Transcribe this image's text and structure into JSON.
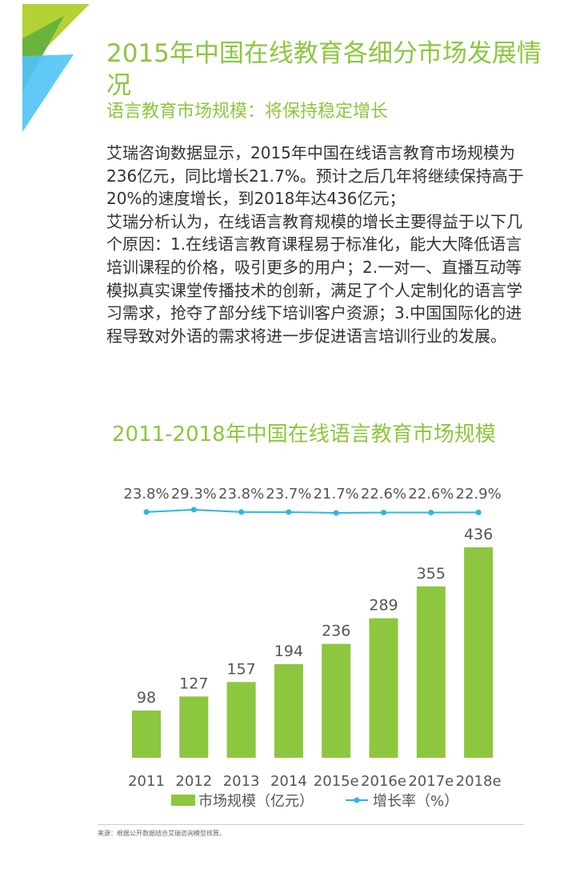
{
  "header": {
    "title": "2015年中国在线教育各细分市场发展情况",
    "subtitle": "语言教育市场规模：将保持稳定增长"
  },
  "body": {
    "paragraph1": "艾瑞咨询数据显示，2015年中国在线语言教育市场规模为236亿元，同比增长21.7%。预计之后几年将继续保持高于20%的速度增长，到2018年达436亿元；",
    "paragraph2": "艾瑞分析认为，在线语言教育规模的增长主要得益于以下几个原因：1.在线语言教育课程易于标准化，能大大降低语言培训课程的价格，吸引更多的用户；2.一对一、直播互动等模拟真实课堂传播技术的创新，满足了个人定制化的语言学习需求，抢夺了部分线下培训客户资源；3.中国国际化的进程导致对外语的需求将进一步促进语言培训行业的发展。"
  },
  "colors": {
    "accent": "#8dc63f",
    "bar": "#8dc63f",
    "line": "#29b6e8",
    "logo_dark": "#6ab43e",
    "logo_light": "#b2d235",
    "logo_blue": "#4fc3f7"
  },
  "chart_data": {
    "type": "bar",
    "title": "2011-2018年中国在线语言教育市场规模",
    "categories": [
      "2011",
      "2012",
      "2013",
      "2014",
      "2015e",
      "2016e",
      "2017e",
      "2018e"
    ],
    "series": [
      {
        "name": "市场规模（亿元）",
        "type": "bar",
        "values": [
          98,
          127,
          157,
          194,
          236,
          289,
          355,
          436
        ]
      },
      {
        "name": "增长率（%）",
        "type": "line",
        "values": [
          23.8,
          29.3,
          23.8,
          23.7,
          21.7,
          22.6,
          22.6,
          22.9
        ],
        "labels": [
          "23.8%",
          "29.3%",
          "23.8%",
          "23.7%",
          "21.7%",
          "22.6%",
          "22.6%",
          "22.9%"
        ]
      }
    ],
    "legend": "bottom",
    "grid": false,
    "ylim": [
      0,
      436
    ]
  },
  "footer": {
    "source": "来源：根据公开数据结合艾瑞咨询模型核算。"
  }
}
